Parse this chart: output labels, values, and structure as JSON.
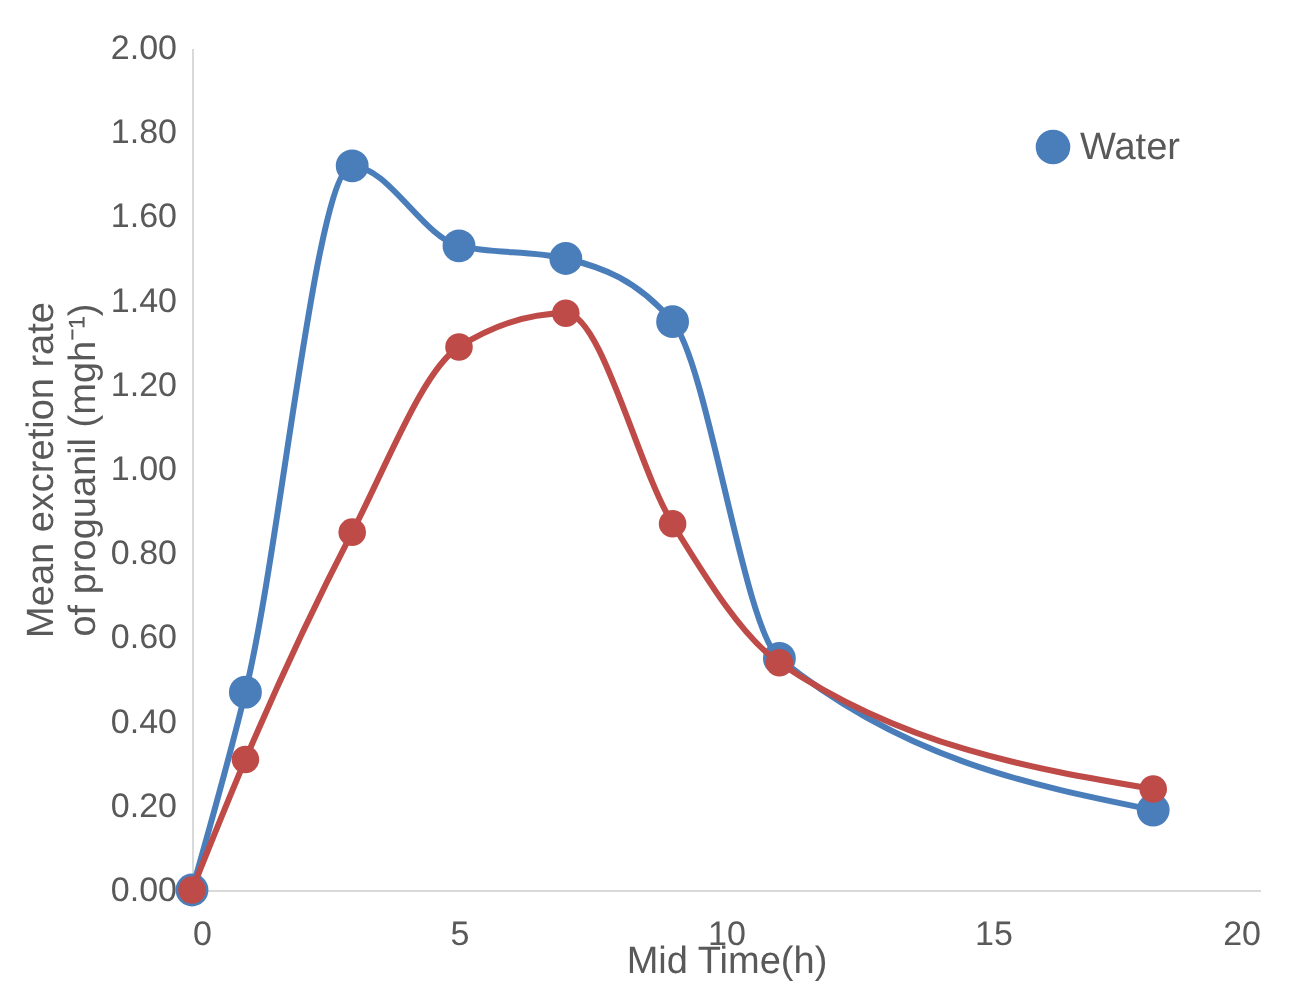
{
  "chart_data": {
    "type": "line",
    "xlabel": "Mid Time(h)",
    "ylabel": "Mean excretion rate of proguanil (mgh⁻¹)",
    "x": [
      0,
      1,
      3,
      5,
      7,
      9,
      11,
      18
    ],
    "series": [
      {
        "name": "Water",
        "color": "#4a7ebb",
        "values": [
          0,
          0.47,
          1.72,
          1.53,
          1.5,
          1.35,
          0.55,
          0.19
        ]
      },
      {
        "color": "#be4b48",
        "values": [
          0,
          0.31,
          0.85,
          1.29,
          1.37,
          0.87,
          0.54,
          0.24
        ]
      }
    ],
    "xlim": [
      0,
      20
    ],
    "xticks": [
      0,
      5,
      10,
      15,
      20
    ],
    "ylim": [
      0,
      2
    ],
    "yticks": [
      {
        "value": 0,
        "label": "0.00"
      },
      {
        "value": 0.2,
        "label": "0.20"
      },
      {
        "value": 0.4,
        "label": "0.40"
      },
      {
        "value": 0.6,
        "label": "0.60"
      },
      {
        "value": 0.8,
        "label": "0.80"
      },
      {
        "value": 1.0,
        "label": "1.00"
      },
      {
        "value": 1.2,
        "label": "1.20"
      },
      {
        "value": 1.4,
        "label": "1.40"
      },
      {
        "value": 1.6,
        "label": "1.60"
      },
      {
        "value": 1.8,
        "label": "1.80"
      },
      {
        "value": 2.0,
        "label": "2.00"
      }
    ],
    "grid": false,
    "legend": "top right",
    "marker": "circle",
    "line_style": "solid"
  }
}
